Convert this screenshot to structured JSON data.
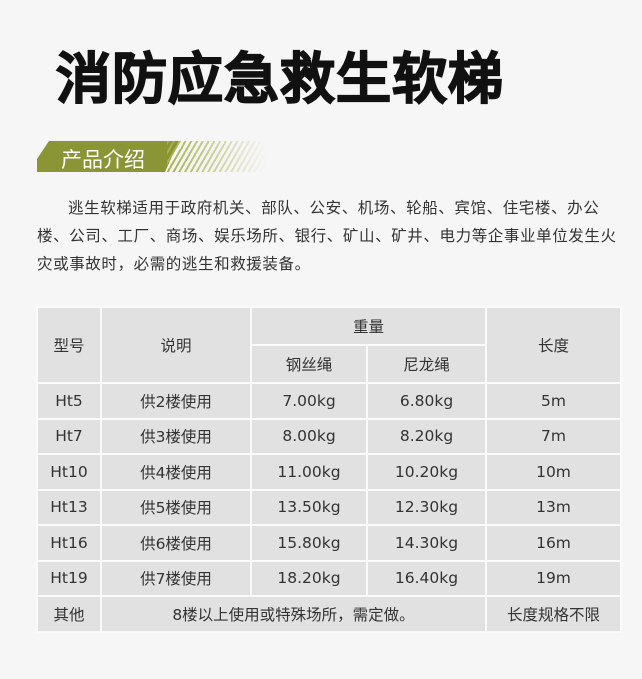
{
  "title": "消防应急救生软梯",
  "section": "产品介绍",
  "intro": "逃生软梯适用于政府机关、部队、公安、机场、轮船、宾馆、住宅楼、办公楼、公司、工厂、商场、娱乐场所、银行、矿山、矿井、电力等企事业单位发生火灾或事故时，必需的逃生和救援装备。",
  "colors": {
    "banner": "#8a9636",
    "cell": "#e1e1e1"
  },
  "table": {
    "headers": {
      "model": "型号",
      "desc": "说明",
      "weight": "重量",
      "steel": "钢丝绳",
      "nylon": "尼龙绳",
      "length": "长度"
    },
    "rows": [
      {
        "model": "Ht5",
        "desc": "供2楼使用",
        "steel": "7.00kg",
        "nylon": "6.80kg",
        "length": "5m"
      },
      {
        "model": "Ht7",
        "desc": "供3楼使用",
        "steel": "8.00kg",
        "nylon": "8.20kg",
        "length": "7m"
      },
      {
        "model": "Ht10",
        "desc": "供4楼使用",
        "steel": "11.00kg",
        "nylon": "10.20kg",
        "length": "10m"
      },
      {
        "model": "Ht13",
        "desc": "供5楼使用",
        "steel": "13.50kg",
        "nylon": "12.30kg",
        "length": "13m"
      },
      {
        "model": "Ht16",
        "desc": "供6楼使用",
        "steel": "15.80kg",
        "nylon": "14.30kg",
        "length": "16m"
      },
      {
        "model": "Ht19",
        "desc": "供7楼使用",
        "steel": "18.20kg",
        "nylon": "16.40kg",
        "length": "19m"
      }
    ],
    "other": {
      "model": "其他",
      "desc": "8楼以上使用或特殊场所，需定做。",
      "length": "长度规格不限"
    }
  }
}
